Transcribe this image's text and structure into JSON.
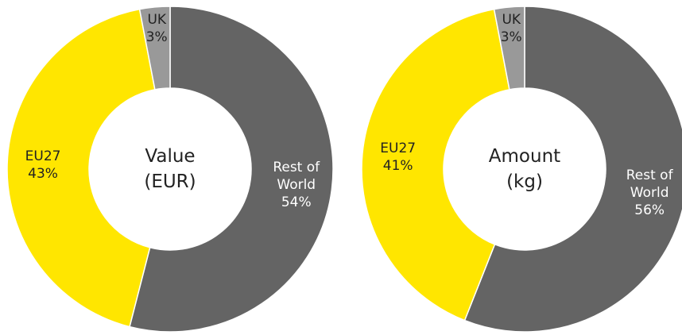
{
  "chart_data": [
    {
      "type": "donut",
      "center_label": "Value (EUR)",
      "categories": [
        "Rest of World",
        "EU27",
        "UK"
      ],
      "values": [
        54,
        43,
        3
      ],
      "value_labels": [
        "54%",
        "43%",
        "3%"
      ],
      "colors": [
        "#646464",
        "#ffe600",
        "#999999"
      ]
    },
    {
      "type": "donut",
      "center_label": "Amount (kg)",
      "categories": [
        "Rest of World",
        "EU27",
        "UK"
      ],
      "values": [
        56,
        41,
        3
      ],
      "value_labels": [
        "56%",
        "41%",
        "3%"
      ],
      "colors": [
        "#646464",
        "#ffe600",
        "#999999"
      ]
    }
  ]
}
